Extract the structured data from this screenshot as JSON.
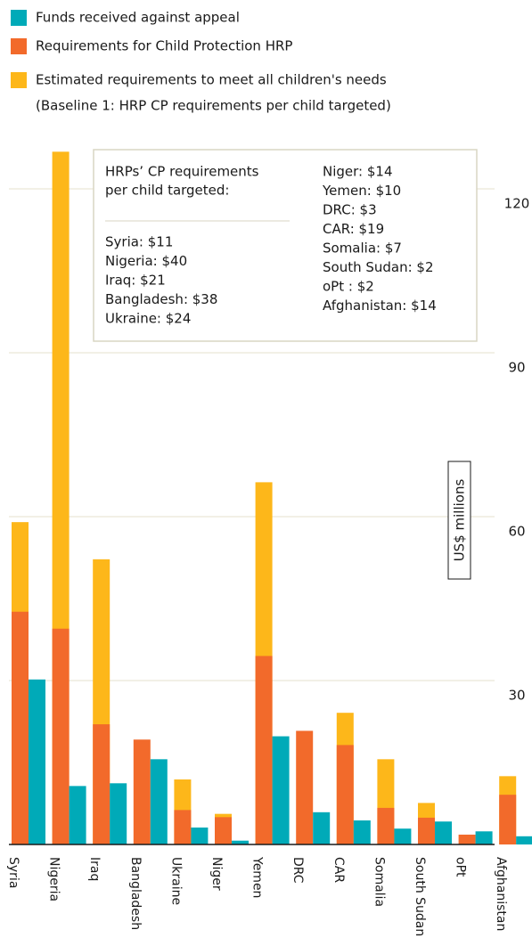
{
  "chart_data": {
    "type": "bar",
    "categories": [
      "Syria",
      "Nigeria",
      "Iraq",
      "Bangladesh",
      "Ukraine",
      "Niger",
      "Yemen",
      "DRC",
      "CAR",
      "Somalia",
      "South Sudan",
      "oPt",
      "Afghanistan"
    ],
    "series": [
      {
        "name": "Funds received against appeal",
        "color": "#00aab8",
        "values": [
          30.2,
          10.7,
          11.2,
          15.6,
          3.1,
          0.7,
          19.8,
          5.9,
          4.4,
          2.9,
          4.2,
          2.4,
          1.5
        ]
      },
      {
        "name": "Requirements for Child Protection HRP",
        "color": "#f26a2b",
        "values": [
          42.6,
          39.5,
          22.0,
          19.2,
          6.3,
          5.0,
          34.5,
          20.8,
          18.2,
          6.7,
          4.9,
          1.8,
          9.1
        ]
      },
      {
        "name": "Estimated requirements to meet all children's needs",
        "color": "#fdb71a",
        "values": [
          59.0,
          126.8,
          52.2,
          null,
          11.9,
          5.6,
          66.3,
          null,
          24.1,
          15.6,
          7.6,
          null,
          12.5
        ]
      }
    ],
    "legend_note": "(Baseline 1: HRP CP requirements per child targeted)",
    "y_label": "US$ millions",
    "ylim": [
      0,
      130
    ],
    "yticks": [
      30,
      60,
      90,
      120
    ],
    "grid": true,
    "annotation": {
      "heading": [
        "HRPs’ CP requirements",
        "per child targeted:"
      ],
      "left": [
        "Syria: $11",
        "Nigeria: $40",
        "Iraq: $21",
        "Bangladesh: $38",
        "Ukraine: $24"
      ],
      "right": [
        "Niger: $14",
        "Yemen: $10",
        "DRC: $3",
        "CAR: $19",
        "Somalia: $7",
        "South Sudan: $2",
        "oPt : $2",
        "Afghanistan: $14"
      ]
    }
  }
}
